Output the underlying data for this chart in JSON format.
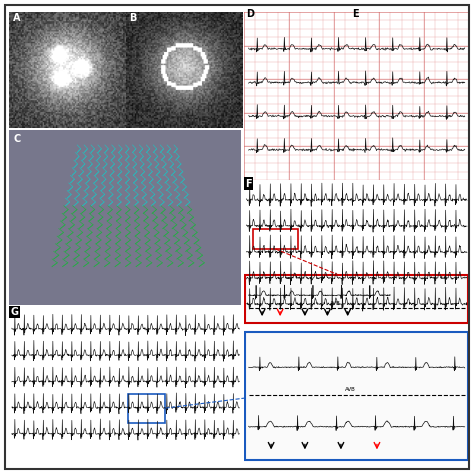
{
  "figure_bg": "#ffffff",
  "panel_A_label": "A",
  "panel_B_label": "B",
  "panel_C_label": "C",
  "panel_D_label": "D",
  "panel_E_label": "E",
  "panel_F_label": "F",
  "panel_G_label": "G",
  "ecg_bg": "#f5c5a3",
  "rhythm_bg": "#f0f0f0",
  "red_box_color": "#cc0000",
  "blue_box_color": "#1a5abf",
  "label_fontsize": 7
}
